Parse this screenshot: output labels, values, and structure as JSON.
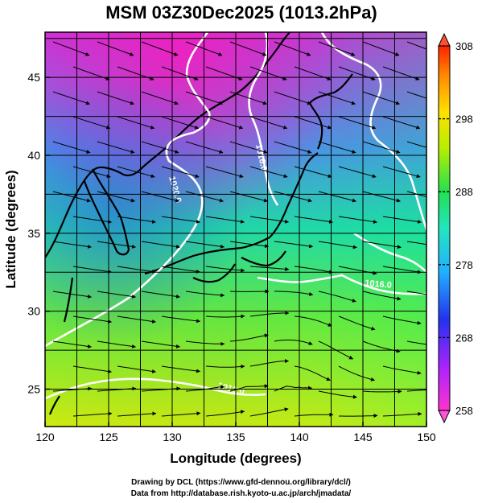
{
  "title": "MSM 03Z30Dec2025 (1013.2hPa)",
  "xlabel": "Longitude (degrees)",
  "ylabel": "Latitude  (degrees)",
  "map": {
    "xlim": [
      120,
      150
    ],
    "ylim": [
      22.6,
      47.9
    ],
    "x_ticks": [
      120,
      125,
      130,
      135,
      140,
      145,
      150
    ],
    "y_ticks": [
      25,
      30,
      35,
      40,
      45
    ],
    "grid": true,
    "isobars": [
      {
        "label": "1020.0"
      },
      {
        "label": "1016.0"
      },
      {
        "label": "1016.0"
      },
      {
        "label": "1016.0"
      }
    ]
  },
  "colorbar": {
    "ticks": [
      258,
      268,
      278,
      288,
      298,
      308
    ],
    "range": [
      258,
      308
    ],
    "colors": [
      "#ff33cc",
      "#aa22ff",
      "#2255ff",
      "#22d0ff",
      "#22e060",
      "#d8ee00",
      "#ff8800",
      "#ff2200"
    ]
  },
  "credits": {
    "line1": "Drawing by DCL (https://www.gfd-dennou.org/library/dcl/)",
    "line2": "Data from http://database.rish.kyoto-u.ac.jp/arch/jmadata/"
  }
}
